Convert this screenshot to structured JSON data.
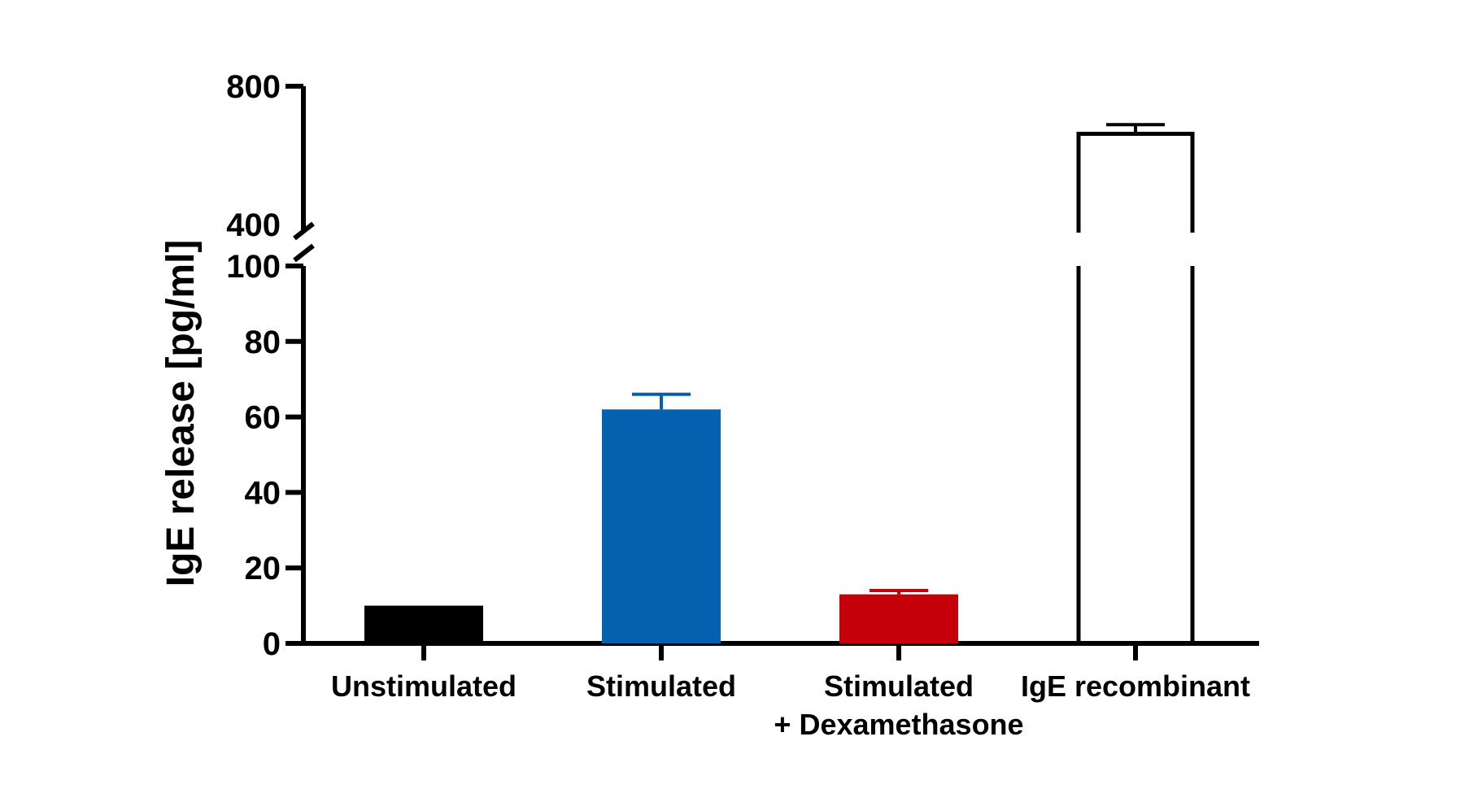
{
  "chart_data": {
    "type": "bar",
    "ylabel": "IgE release [pg/ml]",
    "xlabel": "",
    "title": "",
    "y_axis_break": {
      "lower_segment": [
        0,
        100
      ],
      "upper_segment": [
        400,
        800
      ]
    },
    "y_ticks_lower": [
      "0",
      "20",
      "40",
      "60",
      "80",
      "100"
    ],
    "y_ticks_upper": [
      "400",
      "800"
    ],
    "categories": [
      {
        "lines": [
          "Unstimulated"
        ]
      },
      {
        "lines": [
          "Stimulated"
        ]
      },
      {
        "lines": [
          "Stimulated",
          "+ Dexamethasone"
        ]
      },
      {
        "lines": [
          "IgE recombinant"
        ]
      }
    ],
    "bars": [
      {
        "value": 10,
        "error": 0,
        "color": "#000000",
        "fill": "solid"
      },
      {
        "value": 62,
        "error": 4,
        "color": "#0361b0",
        "fill": "solid"
      },
      {
        "value": 13,
        "error": 1,
        "color": "#c5000b",
        "fill": "solid"
      },
      {
        "value": 670,
        "error": 25,
        "color": "#000000",
        "fill": "outline"
      }
    ],
    "grid": false,
    "legend": "none"
  }
}
